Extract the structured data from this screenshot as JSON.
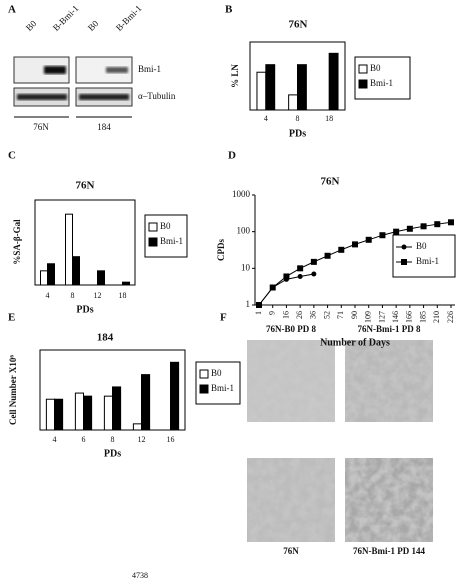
{
  "blot": {
    "panel": "A",
    "lanes": [
      "B0",
      "B-Bmi-1",
      "B0",
      "B-Bmi-1"
    ],
    "rows": [
      "Bmi-1",
      "α–Tubulin"
    ],
    "cell_lines": [
      "76N",
      "184"
    ]
  },
  "chart_data": [
    {
      "type": "bar",
      "panel": "B",
      "title": "76N",
      "x_label": "PDs",
      "y_label": "% LN",
      "categories": [
        "4",
        "8",
        "18"
      ],
      "ylim": [
        0,
        90
      ],
      "series": [
        {
          "name": "B0",
          "color": "#ffffff",
          "values": [
            50,
            20,
            null
          ]
        },
        {
          "name": "Bmi-1",
          "color": "#000000",
          "values": [
            60,
            60,
            75
          ]
        }
      ]
    },
    {
      "type": "bar",
      "panel": "C",
      "title": "76N",
      "x_label": "PDs",
      "y_label": "%SA-β-Gal",
      "categories": [
        "4",
        "8",
        "12",
        "18"
      ],
      "ylim": [
        0,
        60
      ],
      "series": [
        {
          "name": "B0",
          "color": "#ffffff",
          "values": [
            10,
            50,
            null,
            null
          ]
        },
        {
          "name": "Bmi-1",
          "color": "#000000",
          "values": [
            15,
            20,
            10,
            2
          ]
        }
      ]
    },
    {
      "type": "line",
      "panel": "D",
      "title": "76N",
      "x_label": "Number of Days",
      "y_label": "CPDs",
      "x": [
        "1",
        "9",
        "16",
        "26",
        "36",
        "52",
        "71",
        "90",
        "109",
        "127",
        "146",
        "166",
        "185",
        "210",
        "226"
      ],
      "log_y": true,
      "ylim": [
        1,
        1000
      ],
      "yticks": [
        1,
        10,
        100,
        1000
      ],
      "series": [
        {
          "name": "B0",
          "color": "#000000",
          "marker": "circle",
          "values": [
            1,
            3,
            5,
            6,
            7,
            null,
            null,
            null,
            null,
            null,
            null,
            null,
            null,
            null,
            null
          ]
        },
        {
          "name": "Bmi-1",
          "color": "#000000",
          "marker": "square",
          "values": [
            1,
            3,
            6,
            10,
            15,
            22,
            32,
            45,
            60,
            80,
            100,
            120,
            140,
            160,
            180
          ]
        }
      ]
    },
    {
      "type": "bar",
      "panel": "E",
      "title": "184",
      "x_label": "PDs",
      "y_label": "Cell Number X10⁶",
      "categories": [
        "4",
        "6",
        "8",
        "12",
        "16"
      ],
      "ylim": [
        0,
        2.6
      ],
      "series": [
        {
          "name": "B0",
          "color": "#ffffff",
          "values": [
            1.0,
            1.2,
            1.1,
            0.2,
            null
          ]
        },
        {
          "name": "Bmi-1",
          "color": "#000000",
          "values": [
            1.0,
            1.1,
            1.4,
            1.8,
            2.2
          ]
        }
      ]
    }
  ],
  "micrographs": {
    "panel": "F",
    "captions": [
      "76N-B0 PD 8",
      "76N-Bmi-1 PD 8",
      "76N",
      "76N-Bmi-1 PD 144"
    ]
  },
  "page_number": "4738"
}
